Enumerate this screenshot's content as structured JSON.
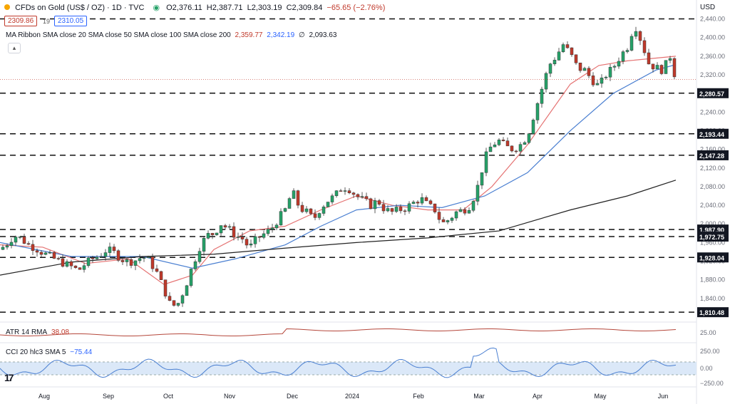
{
  "header": {
    "symbol": "CFDs on Gold (US$ / OZ) · 1D · TVC",
    "open": "O2,376.11",
    "high": "H2,387.71",
    "low": "L2,303.19",
    "close": "C2,309.84",
    "change": "−65.65 (−2.76%)",
    "bid": "2309.86",
    "spread": "19",
    "ask": "2310.05"
  },
  "ma_legend": {
    "name": "MA Ribbon SMA close 20 SMA close 50 SMA close 100 SMA close 200",
    "v1": "2,359.77",
    "v2": "2,342.19",
    "v3": "∅",
    "v4": "2,093.63"
  },
  "atr_legend": {
    "name": "ATR 14 RMA",
    "value": "38.08"
  },
  "cci_legend": {
    "name": "CCI 20 hlc3 SMA 5",
    "value": "−75.44"
  },
  "currency": "USD",
  "colors": {
    "up": "#26a269",
    "down": "#c0392b",
    "sma20": "#e57373",
    "sma50": "#4a7fd1",
    "sma200": "#222222",
    "atr": "#b5473b",
    "cci": "#4a7fd1",
    "cci_band": "#dbe8f8"
  },
  "chart_data": {
    "type": "candlestick",
    "x_labels": [
      "Aug",
      "Sep",
      "Oct",
      "Nov",
      "Dec",
      "2024",
      "Feb",
      "Mar",
      "Apr",
      "May",
      "Jun"
    ],
    "y_ticks": [
      1840,
      1880,
      1920,
      1960,
      2000,
      2040,
      2080,
      2120,
      2160,
      2200,
      2240,
      2280,
      2320,
      2360,
      2400,
      2440
    ],
    "ylim": [
      1800,
      2450
    ],
    "horizontal_levels": [
      {
        "value": 2440.0,
        "label": ""
      },
      {
        "value": 2280.57,
        "label": "2,280.57"
      },
      {
        "value": 2193.44,
        "label": "2,193.44"
      },
      {
        "value": 2147.28,
        "label": "2,147.28"
      },
      {
        "value": 1987.9,
        "label": "1,987.90"
      },
      {
        "value": 1972.75,
        "label": "1,972.75"
      },
      {
        "value": 1928.04,
        "label": "1,928.04"
      },
      {
        "value": 1810.48,
        "label": "1,810.48"
      }
    ],
    "price_path": [
      [
        0,
        1945
      ],
      [
        10,
        1958
      ],
      [
        20,
        1975
      ],
      [
        30,
        1968
      ],
      [
        40,
        1955
      ],
      [
        50,
        1948
      ],
      [
        60,
        1938
      ],
      [
        70,
        1930
      ],
      [
        80,
        1922
      ],
      [
        90,
        1915
      ],
      [
        100,
        1908
      ],
      [
        110,
        1900
      ],
      [
        120,
        1915
      ],
      [
        130,
        1925
      ],
      [
        140,
        1932
      ],
      [
        150,
        1945
      ],
      [
        160,
        1938
      ],
      [
        170,
        1925
      ],
      [
        180,
        1918
      ],
      [
        190,
        1922
      ],
      [
        200,
        1930
      ],
      [
        210,
        1920
      ],
      [
        220,
        1895
      ],
      [
        230,
        1860
      ],
      [
        240,
        1822
      ],
      [
        250,
        1830
      ],
      [
        260,
        1865
      ],
      [
        270,
        1910
      ],
      [
        280,
        1950
      ],
      [
        290,
        1975
      ],
      [
        300,
        1980
      ],
      [
        310,
        2000
      ],
      [
        320,
        1990
      ],
      [
        330,
        1975
      ],
      [
        340,
        1968
      ],
      [
        350,
        1948
      ],
      [
        360,
        1968
      ],
      [
        370,
        1978
      ],
      [
        380,
        1988
      ],
      [
        390,
        2010
      ],
      [
        400,
        2030
      ],
      [
        410,
        2070
      ],
      [
        420,
        2035
      ],
      [
        430,
        2025
      ],
      [
        440,
        2010
      ],
      [
        450,
        2035
      ],
      [
        460,
        2050
      ],
      [
        470,
        2060
      ],
      [
        480,
        2080
      ],
      [
        490,
        2075
      ],
      [
        500,
        2060
      ],
      [
        510,
        2050
      ],
      [
        520,
        2040
      ],
      [
        530,
        2050
      ],
      [
        540,
        2030
      ],
      [
        550,
        2025
      ],
      [
        560,
        2030
      ],
      [
        570,
        2035
      ],
      [
        580,
        2045
      ],
      [
        590,
        2055
      ],
      [
        600,
        2040
      ],
      [
        610,
        2030
      ],
      [
        620,
        2000
      ],
      [
        630,
        2010
      ],
      [
        640,
        2025
      ],
      [
        650,
        2030
      ],
      [
        660,
        2040
      ],
      [
        670,
        2080
      ],
      [
        680,
        2140
      ],
      [
        690,
        2170
      ],
      [
        700,
        2178
      ],
      [
        710,
        2165
      ],
      [
        720,
        2160
      ],
      [
        730,
        2170
      ],
      [
        740,
        2190
      ],
      [
        750,
        2240
      ],
      [
        760,
        2290
      ],
      [
        770,
        2340
      ],
      [
        780,
        2360
      ],
      [
        790,
        2385
      ],
      [
        800,
        2365
      ],
      [
        810,
        2335
      ],
      [
        820,
        2330
      ],
      [
        830,
        2310
      ],
      [
        840,
        2295
      ],
      [
        850,
        2320
      ],
      [
        860,
        2335
      ],
      [
        870,
        2360
      ],
      [
        880,
        2380
      ],
      [
        890,
        2430
      ],
      [
        900,
        2390
      ],
      [
        910,
        2345
      ],
      [
        920,
        2335
      ],
      [
        930,
        2330
      ],
      [
        940,
        2360
      ],
      [
        948,
        2310
      ]
    ],
    "series": [
      {
        "name": "SMA 20",
        "points": [
          [
            0,
            1955
          ],
          [
            60,
            1950
          ],
          [
            120,
            1915
          ],
          [
            180,
            1925
          ],
          [
            230,
            1870
          ],
          [
            270,
            1890
          ],
          [
            300,
            1945
          ],
          [
            350,
            1985
          ],
          [
            400,
            1995
          ],
          [
            450,
            2030
          ],
          [
            500,
            2060
          ],
          [
            550,
            2040
          ],
          [
            600,
            2030
          ],
          [
            650,
            2030
          ],
          [
            690,
            2080
          ],
          [
            740,
            2170
          ],
          [
            800,
            2300
          ],
          [
            840,
            2340
          ],
          [
            880,
            2350
          ],
          [
            948,
            2360
          ]
        ]
      },
      {
        "name": "SMA 50",
        "points": [
          [
            0,
            1960
          ],
          [
            100,
            1930
          ],
          [
            200,
            1930
          ],
          [
            270,
            1905
          ],
          [
            330,
            1925
          ],
          [
            400,
            1955
          ],
          [
            450,
            1995
          ],
          [
            500,
            2030
          ],
          [
            560,
            2040
          ],
          [
            620,
            2035
          ],
          [
            680,
            2060
          ],
          [
            740,
            2110
          ],
          [
            800,
            2200
          ],
          [
            860,
            2280
          ],
          [
            920,
            2330
          ],
          [
            948,
            2342
          ]
        ]
      },
      {
        "name": "SMA 200",
        "points": [
          [
            0,
            1890
          ],
          [
            100,
            1918
          ],
          [
            200,
            1930
          ],
          [
            300,
            1935
          ],
          [
            400,
            1948
          ],
          [
            500,
            1960
          ],
          [
            600,
            1970
          ],
          [
            700,
            1985
          ],
          [
            800,
            2030
          ],
          [
            880,
            2060
          ],
          [
            948,
            2094
          ]
        ]
      }
    ],
    "atr": {
      "name": "ATR 14 RMA",
      "value": 38.08,
      "y_ticks": [
        25.0
      ]
    },
    "cci": {
      "name": "CCI 20 hlc3 SMA 5",
      "value": -75.44,
      "y_ticks": [
        250.0,
        0.0,
        -250.0
      ]
    }
  }
}
